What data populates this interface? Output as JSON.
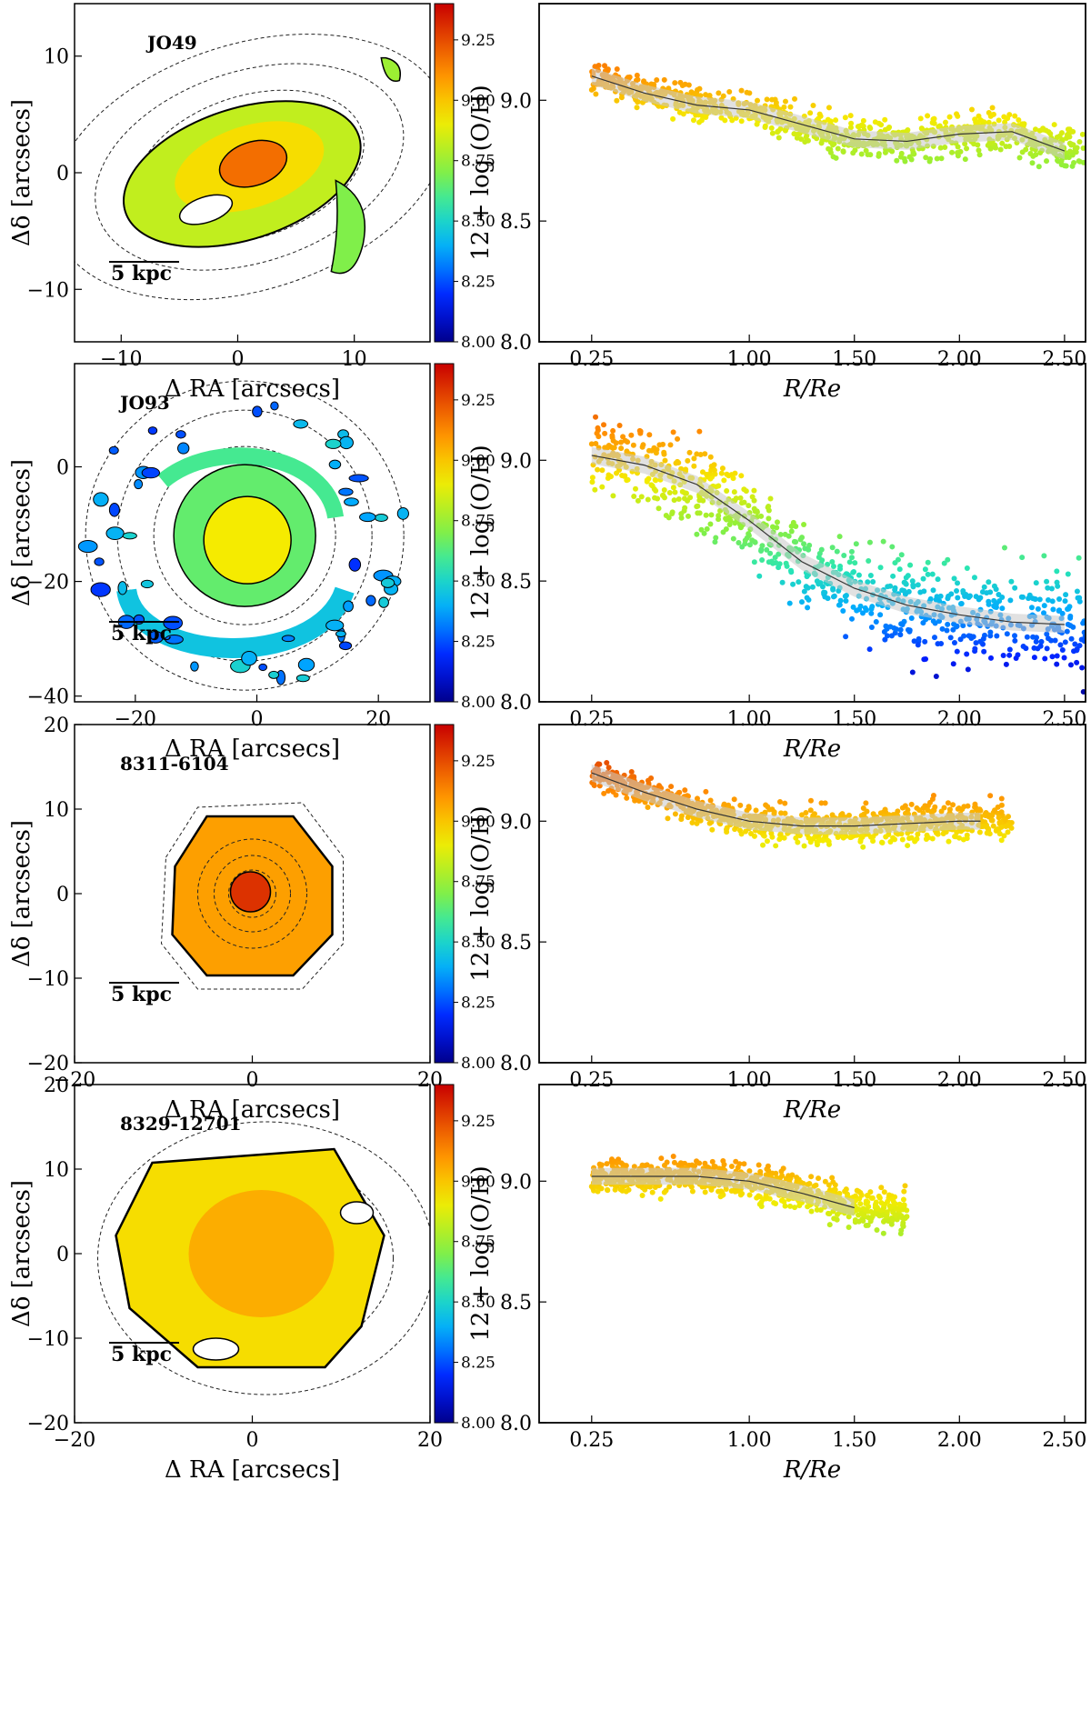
{
  "figure": {
    "colormap": {
      "low": "#00008b",
      "mid": "#00d080",
      "high": "#c80000",
      "range": [
        8.0,
        9.4
      ]
    }
  },
  "chart_data": [
    {
      "type": "map",
      "panel": "map",
      "galaxy": "JO49",
      "xlabel": "Δ RA [arcsecs]",
      "ylabel": "Δδ [arcsecs]",
      "xlim": [
        -14,
        16.5
      ],
      "ylim": [
        -14.5,
        14.5
      ],
      "xticks": [
        {
          "v": -10,
          "label": "−10"
        },
        {
          "v": 0,
          "label": "0"
        },
        {
          "v": 10,
          "label": "10"
        }
      ],
      "yticks": [
        {
          "v": -10,
          "label": "−10"
        },
        {
          "v": 0,
          "label": "0"
        },
        {
          "v": 10,
          "label": "10"
        }
      ],
      "scalebar": "5 kpc",
      "center": [
        1,
        0.5
      ],
      "colorbar": {
        "min": 8.0,
        "max": 9.4,
        "ticks": [
          "8.00",
          "8.25",
          "8.50",
          "8.75",
          "9.00",
          "9.25"
        ]
      }
    },
    {
      "type": "scatter",
      "panel": "profile",
      "galaxy": "JO49",
      "xlabel": "R/Re",
      "ylabel": "12 + log (O/H)",
      "xlim": [
        0,
        2.6
      ],
      "ylim": [
        8.0,
        9.4
      ],
      "xticks": [
        "0.25",
        "1.00",
        "1.50",
        "2.00",
        "2.50"
      ],
      "yticks": [
        "8.0",
        "8.5",
        "9.0"
      ],
      "median_x": [
        0.25,
        0.5,
        0.75,
        1.0,
        1.25,
        1.5,
        1.75,
        2.0,
        2.25,
        2.5
      ],
      "median_y": [
        9.1,
        9.03,
        8.98,
        8.96,
        8.9,
        8.84,
        8.83,
        8.86,
        8.87,
        8.79
      ],
      "scatter_range": [
        0.02,
        2.6
      ],
      "scatter": 0.05
    },
    {
      "type": "map",
      "panel": "map",
      "galaxy": "JO93",
      "xlabel": "Δ RA [arcsecs]",
      "ylabel": "Δδ [arcsecs]",
      "xlim": [
        -30,
        28.5
      ],
      "ylim": [
        -41,
        18
      ],
      "xticks": [
        {
          "v": -20,
          "label": "−20"
        },
        {
          "v": 0,
          "label": "0"
        },
        {
          "v": 20,
          "label": "20"
        }
      ],
      "yticks": [
        {
          "v": -40,
          "label": "−40"
        },
        {
          "v": -20,
          "label": "−20"
        },
        {
          "v": 0,
          "label": "0"
        }
      ],
      "scalebar": "5 kpc",
      "center": [
        -2,
        -12
      ],
      "colorbar": {
        "min": 8.0,
        "max": 9.4,
        "ticks": [
          "8.00",
          "8.25",
          "8.50",
          "8.75",
          "9.00",
          "9.25"
        ]
      }
    },
    {
      "type": "scatter",
      "panel": "profile",
      "galaxy": "JO93",
      "xlabel": "R/Re",
      "ylabel": "12 + log (O/H)",
      "xlim": [
        0,
        2.6
      ],
      "ylim": [
        8.0,
        9.4
      ],
      "xticks": [
        "0.25",
        "1.00",
        "1.50",
        "2.00",
        "2.50"
      ],
      "yticks": [
        "8.0",
        "8.5",
        "9.0"
      ],
      "median_x": [
        0.25,
        0.5,
        0.75,
        1.0,
        1.25,
        1.5,
        1.75,
        2.0,
        2.25,
        2.5
      ],
      "median_y": [
        9.02,
        8.98,
        8.9,
        8.75,
        8.58,
        8.47,
        8.4,
        8.36,
        8.33,
        8.32
      ],
      "scatter_range": [
        0.02,
        2.6
      ],
      "scatter": 0.12
    },
    {
      "type": "map",
      "panel": "map",
      "galaxy": "8311-6104",
      "xlabel": "Δ RA [arcsecs]",
      "ylabel": "Δδ [arcsecs]",
      "xlim": [
        -20,
        20
      ],
      "ylim": [
        -20,
        20
      ],
      "xticks": [
        {
          "v": -20,
          "label": "−20"
        },
        {
          "v": 0,
          "label": "0"
        },
        {
          "v": 20,
          "label": "20"
        }
      ],
      "yticks": [
        {
          "v": -20,
          "label": "−20"
        },
        {
          "v": -10,
          "label": "−10"
        },
        {
          "v": 0,
          "label": "0"
        },
        {
          "v": 10,
          "label": "10"
        },
        {
          "v": 20,
          "label": "20"
        }
      ],
      "scalebar": "5 kpc",
      "center": [
        0,
        0
      ],
      "colorbar": {
        "min": 8.0,
        "max": 9.4,
        "ticks": [
          "8.00",
          "8.25",
          "8.50",
          "8.75",
          "9.00",
          "9.25"
        ]
      }
    },
    {
      "type": "scatter",
      "panel": "profile",
      "galaxy": "8311-6104",
      "xlabel": "R/Re",
      "ylabel": "12 + log (O/H)",
      "xlim": [
        0,
        2.6
      ],
      "ylim": [
        8.0,
        9.4
      ],
      "xticks": [
        "0.25",
        "1.00",
        "1.50",
        "2.00",
        "2.50"
      ],
      "yticks": [
        "8.0",
        "8.5",
        "9.0"
      ],
      "median_x": [
        0.25,
        0.5,
        0.75,
        1.0,
        1.25,
        1.5,
        1.75,
        2.0,
        2.1
      ],
      "median_y": [
        9.2,
        9.12,
        9.05,
        9.0,
        8.98,
        8.98,
        8.99,
        9.0,
        9.0
      ],
      "scatter_range": [
        0.05,
        2.25
      ],
      "scatter": 0.05
    },
    {
      "type": "map",
      "panel": "map",
      "galaxy": "8329-12701",
      "xlabel": "Δ RA [arcsecs]",
      "ylabel": "Δδ [arcsecs]",
      "xlim": [
        -20,
        20
      ],
      "ylim": [
        -20,
        20
      ],
      "xticks": [
        {
          "v": -20,
          "label": "−20"
        },
        {
          "v": 0,
          "label": "0"
        },
        {
          "v": 20,
          "label": "20"
        }
      ],
      "yticks": [
        {
          "v": -20,
          "label": "−20"
        },
        {
          "v": -10,
          "label": "−10"
        },
        {
          "v": 0,
          "label": "0"
        },
        {
          "v": 10,
          "label": "10"
        },
        {
          "v": 20,
          "label": "20"
        }
      ],
      "scalebar": "5 kpc",
      "center": [
        0,
        0
      ],
      "colorbar": {
        "min": 8.0,
        "max": 9.4,
        "ticks": [
          "8.00",
          "8.25",
          "8.50",
          "8.75",
          "9.00",
          "9.25"
        ]
      }
    },
    {
      "type": "scatter",
      "panel": "profile",
      "galaxy": "8329-12701",
      "xlabel": "R/Re",
      "ylabel": "12 + log (O/H)",
      "xlim": [
        0,
        2.6
      ],
      "ylim": [
        8.0,
        9.4
      ],
      "xticks": [
        "0.25",
        "1.00",
        "1.50",
        "2.00",
        "2.50"
      ],
      "yticks": [
        "8.0",
        "8.5",
        "9.0"
      ],
      "median_x": [
        0.25,
        0.5,
        0.75,
        1.0,
        1.25,
        1.5
      ],
      "median_y": [
        9.02,
        9.02,
        9.02,
        9.0,
        8.95,
        8.89
      ],
      "scatter_range": [
        0.02,
        1.75
      ],
      "scatter": 0.05
    }
  ]
}
